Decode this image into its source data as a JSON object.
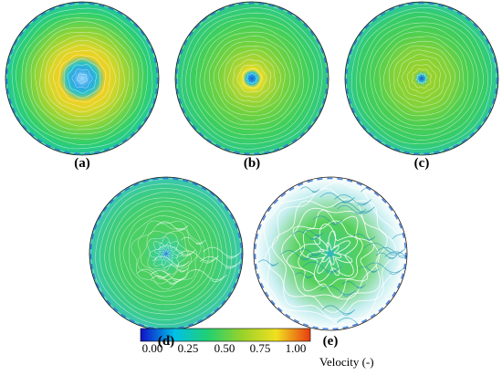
{
  "panels": [
    {
      "label": "(a)",
      "type": "swirl"
    },
    {
      "label": "(b)",
      "type": "ring"
    },
    {
      "label": "(c)",
      "type": "calm"
    },
    {
      "label": "(d)",
      "type": "blob"
    },
    {
      "label": "(e)",
      "type": "turbulent"
    }
  ],
  "colorbar": {
    "ticks": [
      "0.00",
      "0.25",
      "0.50",
      "0.75",
      "1.00"
    ],
    "label": "Velocity (-)",
    "colors": [
      "#1010c8",
      "#00c0e8",
      "#22d070",
      "#9ad22a",
      "#f0e020",
      "#e83c10"
    ]
  }
}
